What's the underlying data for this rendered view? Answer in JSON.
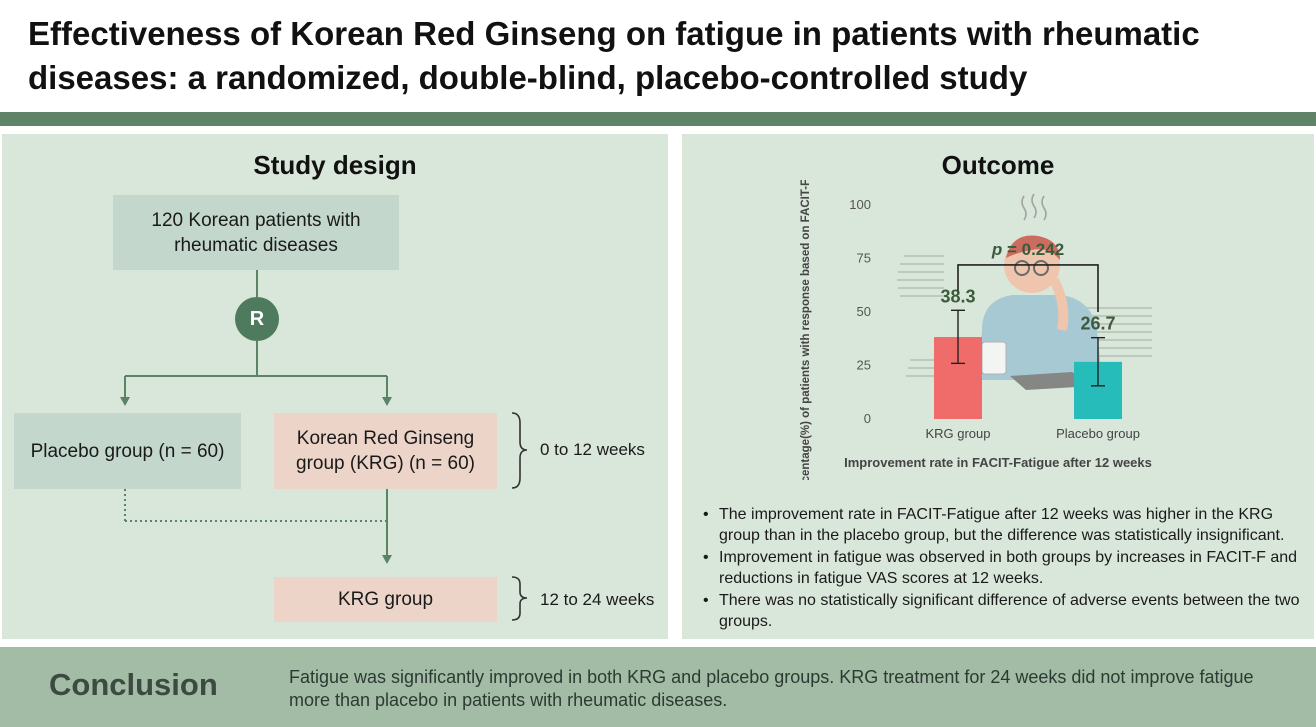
{
  "title": "Effectiveness of Korean Red Ginseng on fatigue in patients with rheumatic diseases: a randomized, double-blind, placebo-controlled study",
  "study_design": {
    "heading": "Study design",
    "population": "120 Korean patients with rheumatic diseases",
    "randomization_label": "R",
    "placebo_group": "Placebo group (n = 60)",
    "krg_group_initial": "Korean Red Ginseng group (KRG) (n = 60)",
    "period_1": "0 to 12 weeks",
    "krg_group_extension": "KRG group",
    "period_2": "12 to 24 weeks"
  },
  "outcome": {
    "heading": "Outcome",
    "bullets": [
      "The improvement rate in FACIT-Fatigue after 12 weeks was higher in the KRG group than in the placebo group, but the difference was statistically insignificant.",
      "Improvement in fatigue was observed in both groups by increases in FACIT-F and reductions in fatigue VAS scores at 12 weeks.",
      "There was no statistically significant difference of adverse events between the two groups."
    ]
  },
  "chart_data": {
    "type": "bar",
    "title": "Improvement rate in FACIT-Fatigue after 12 weeks",
    "ylabel": "Percentage(%) of patients with response based on FACIT-Fatigue scale",
    "xlabel": "",
    "categories": [
      "KRG group",
      "Placebo group"
    ],
    "values": [
      38.3,
      26.7
    ],
    "value_labels": [
      "38.3",
      "26.7"
    ],
    "error_low": [
      26.0,
      15.5
    ],
    "error_high": [
      50.8,
      38.0
    ],
    "bar_colors": [
      "#ef6c6a",
      "#25bcb9"
    ],
    "ylim": [
      0,
      100
    ],
    "yticks": [
      0,
      25,
      50,
      75,
      100
    ],
    "ytick_labels": [
      "0",
      "25",
      "50",
      "75",
      "100"
    ],
    "significance": {
      "p_prefix": "p",
      "p_rest": " = 0.242",
      "bracket_value": 72
    }
  },
  "conclusion": {
    "label": "Conclusion",
    "text": "Fatigue was significantly improved in both KRG and placebo groups. KRG treatment for 24 weeks did not improve fatigue more than placebo in patients with rheumatic diseases."
  }
}
